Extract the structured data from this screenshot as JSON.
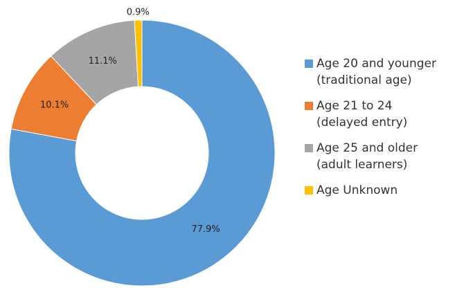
{
  "chart_data": {
    "type": "donut",
    "categories": [
      "Age 20 and younger\n(traditional age)",
      "Age 21 to 24\n(delayed entry)",
      "Age 25 and older\n(adult learners)",
      "Age Unknown"
    ],
    "values": [
      77.9,
      10.1,
      11.1,
      0.9
    ],
    "value_labels": [
      "77.9%",
      "10.1%",
      "11.1%",
      "0.9%"
    ],
    "colors": [
      "#5b9bd5",
      "#ed7d31",
      "#a5a5a5",
      "#ffc000"
    ],
    "legend": "right"
  }
}
